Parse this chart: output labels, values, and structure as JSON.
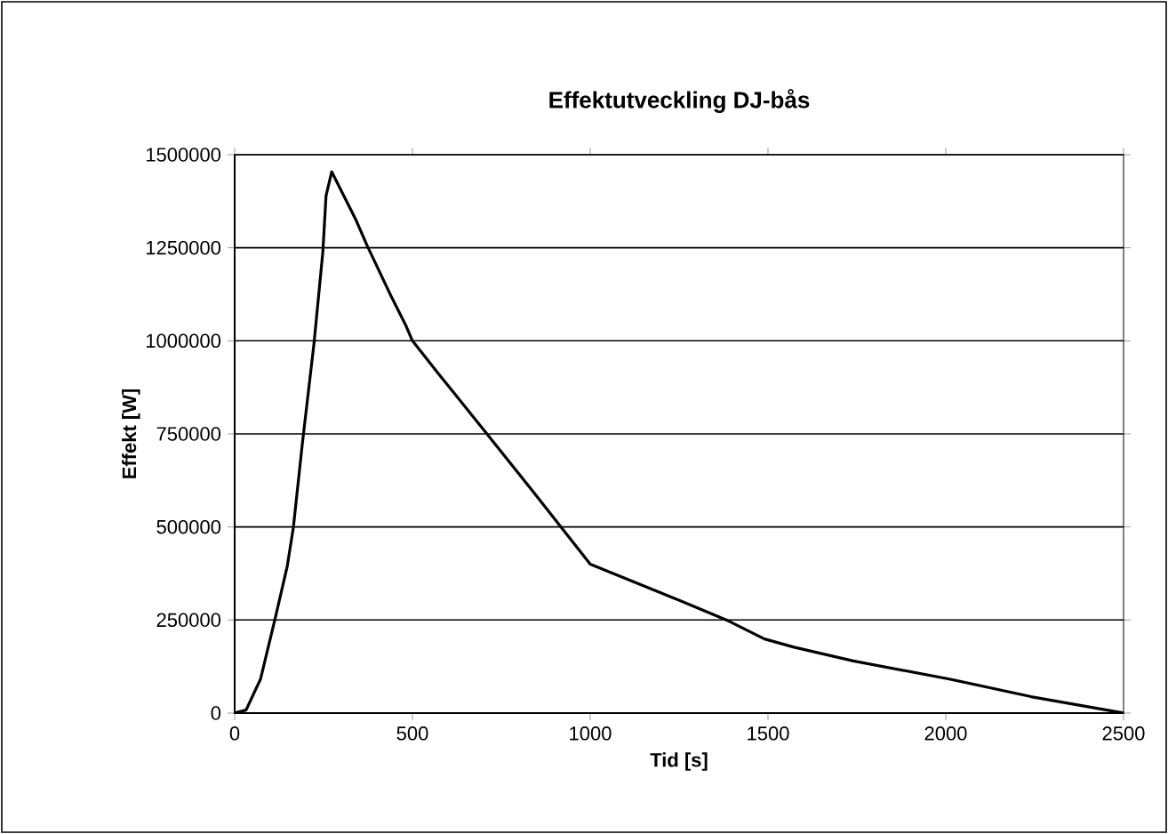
{
  "chart_data": {
    "type": "line",
    "title": "Effektutveckling DJ-bås",
    "xlabel": "Tid [s]",
    "ylabel": "Effekt [W]",
    "xlim": [
      0,
      2500
    ],
    "xticks": [
      0,
      500,
      1000,
      1500,
      2000,
      2500
    ],
    "ylim": [
      0,
      1500000
    ],
    "yticks": [
      0,
      250000,
      500000,
      750000,
      1000000,
      1250000,
      1500000
    ],
    "grid": "y",
    "marker": "none",
    "line_style": "solid",
    "series": [
      {
        "color": "#000000",
        "x": [
          0,
          32,
          73,
          115,
          148,
          165,
          190,
          223,
          248,
          257,
          273,
          340,
          373,
          440,
          482,
          500,
          573,
          707,
          840,
          1000,
          1240,
          1390,
          1490,
          1573,
          1740,
          2007,
          2240,
          2500
        ],
        "values": [
          0,
          8000,
          92000,
          259000,
          395000,
          498000,
          721000,
          992000,
          1239000,
          1390000,
          1454000,
          1327000,
          1255000,
          1120000,
          1040000,
          1000000,
          912000,
          753000,
          594000,
          400000,
          307000,
          247000,
          199000,
          177000,
          140000,
          92000,
          44000,
          0
        ]
      }
    ]
  }
}
